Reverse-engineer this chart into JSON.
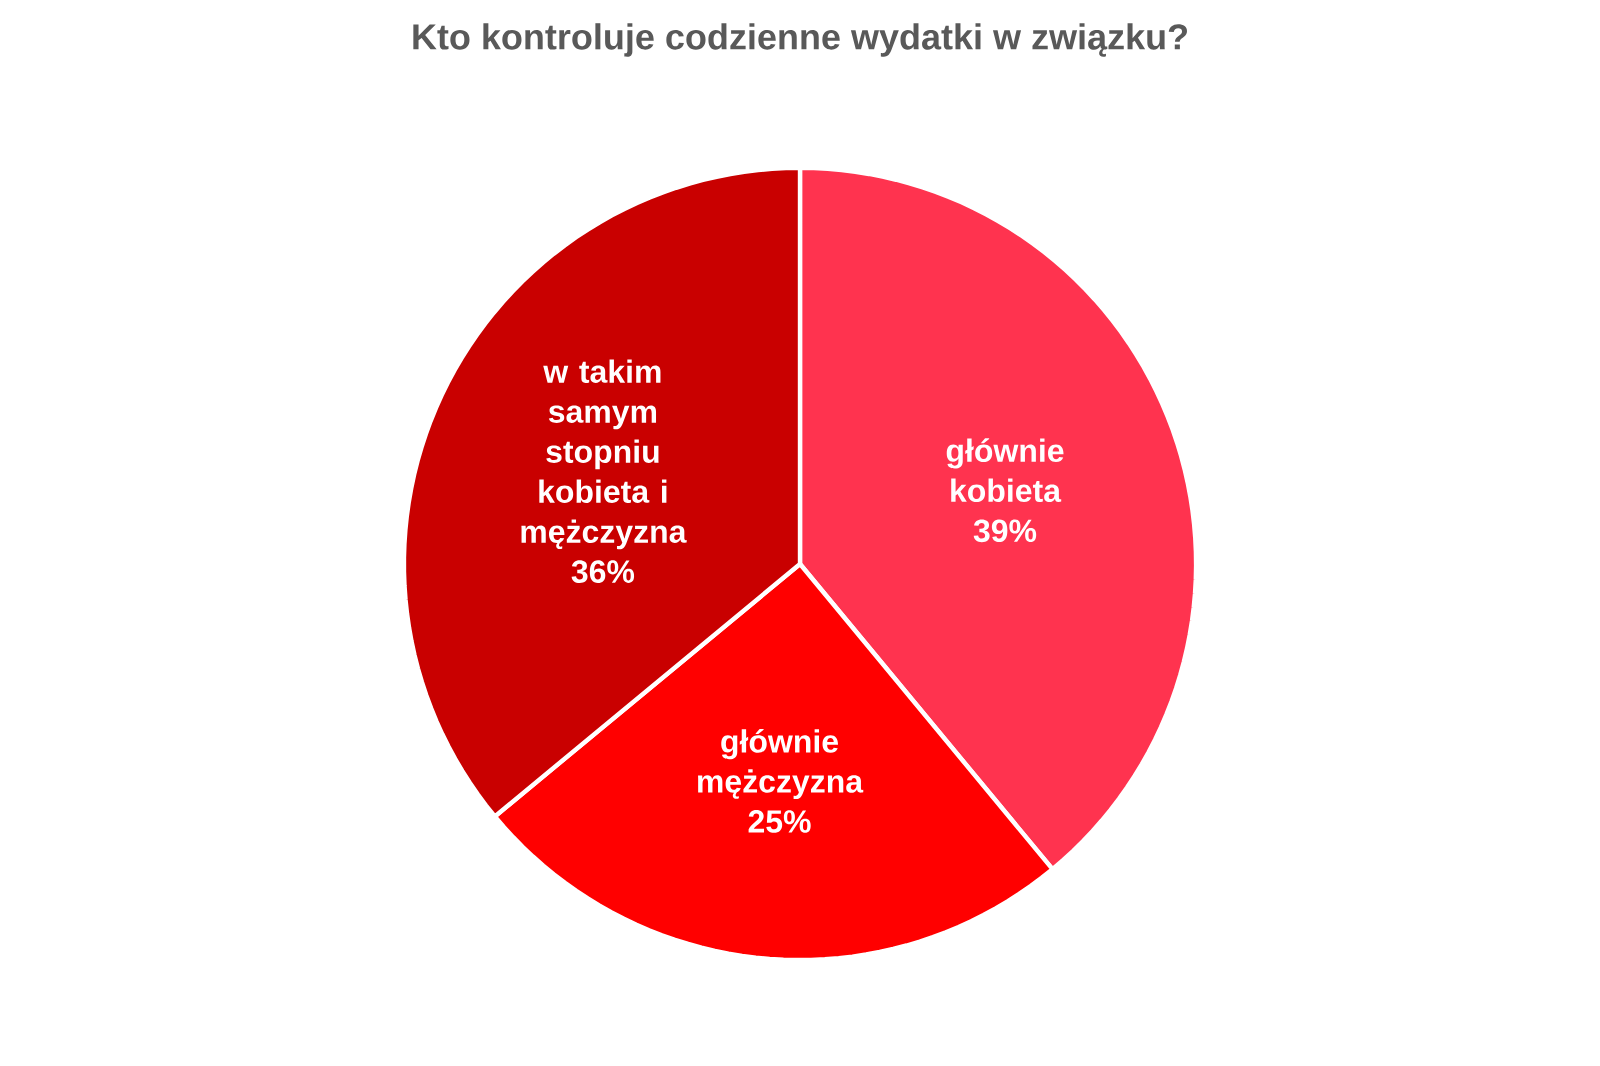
{
  "chart_data": {
    "type": "pie",
    "title": "Kto kontroluje codzienne wydatki w związku?",
    "categories": [
      "głównie kobieta",
      "głównie mężczyzna",
      "w takim samym stopniu kobieta i mężczyzna"
    ],
    "values": [
      39,
      25,
      36
    ],
    "value_labels": [
      "39%",
      "25%",
      "36%"
    ],
    "colors": [
      "#ff334f",
      "#ff0000",
      "#c90000"
    ]
  }
}
